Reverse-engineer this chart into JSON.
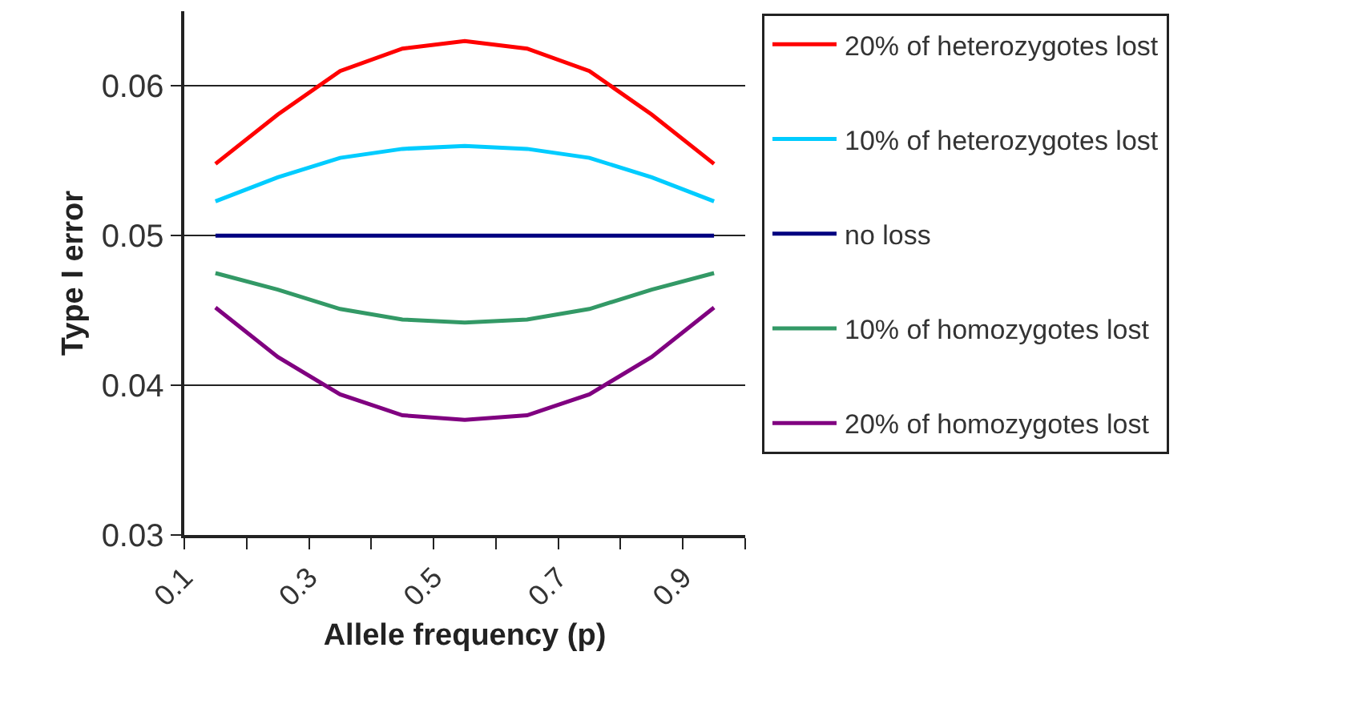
{
  "chart_data": {
    "type": "line",
    "xlabel": "Allele frequency (p)",
    "ylabel": "Type I error",
    "x": [
      0.15,
      0.25,
      0.35,
      0.45,
      0.55,
      0.65,
      0.75,
      0.85,
      0.95
    ],
    "series": [
      {
        "name": "20% of heterozygotes lost",
        "color": "#ff0000",
        "values": [
          0.0548,
          0.0581,
          0.061,
          0.0625,
          0.063,
          0.0625,
          0.061,
          0.0581,
          0.0548
        ]
      },
      {
        "name": "10% of heterozygotes lost",
        "color": "#00ccff",
        "values": [
          0.0523,
          0.0539,
          0.0552,
          0.0558,
          0.056,
          0.0558,
          0.0552,
          0.0539,
          0.0523
        ]
      },
      {
        "name": "no loss",
        "color": "#000080",
        "values": [
          0.05,
          0.05,
          0.05,
          0.05,
          0.05,
          0.05,
          0.05,
          0.05,
          0.05
        ]
      },
      {
        "name": "10% of homozygotes lost",
        "color": "#339966",
        "values": [
          0.0475,
          0.0464,
          0.0451,
          0.0444,
          0.0442,
          0.0444,
          0.0451,
          0.0464,
          0.0475
        ]
      },
      {
        "name": "20% of homozygotes lost",
        "color": "#800080",
        "values": [
          0.0452,
          0.0419,
          0.0394,
          0.038,
          0.0377,
          0.038,
          0.0394,
          0.0419,
          0.0452
        ]
      }
    ],
    "xlim": [
      0.1,
      1.0
    ],
    "xticks": [
      {
        "value": 0.1,
        "label": "0.1"
      },
      {
        "value": 0.2,
        "label": null
      },
      {
        "value": 0.3,
        "label": "0.3"
      },
      {
        "value": 0.4,
        "label": null
      },
      {
        "value": 0.5,
        "label": "0.5"
      },
      {
        "value": 0.6,
        "label": null
      },
      {
        "value": 0.7,
        "label": "0.7"
      },
      {
        "value": 0.8,
        "label": null
      },
      {
        "value": 0.9,
        "label": "0.9"
      },
      {
        "value": 1.0,
        "label": null
      }
    ],
    "ylim": [
      0.03,
      0.065
    ],
    "yticks": [
      0.03,
      0.04,
      0.05,
      0.06
    ],
    "grid": "y",
    "legend": "right",
    "marker": "none",
    "line_style": "solid"
  }
}
